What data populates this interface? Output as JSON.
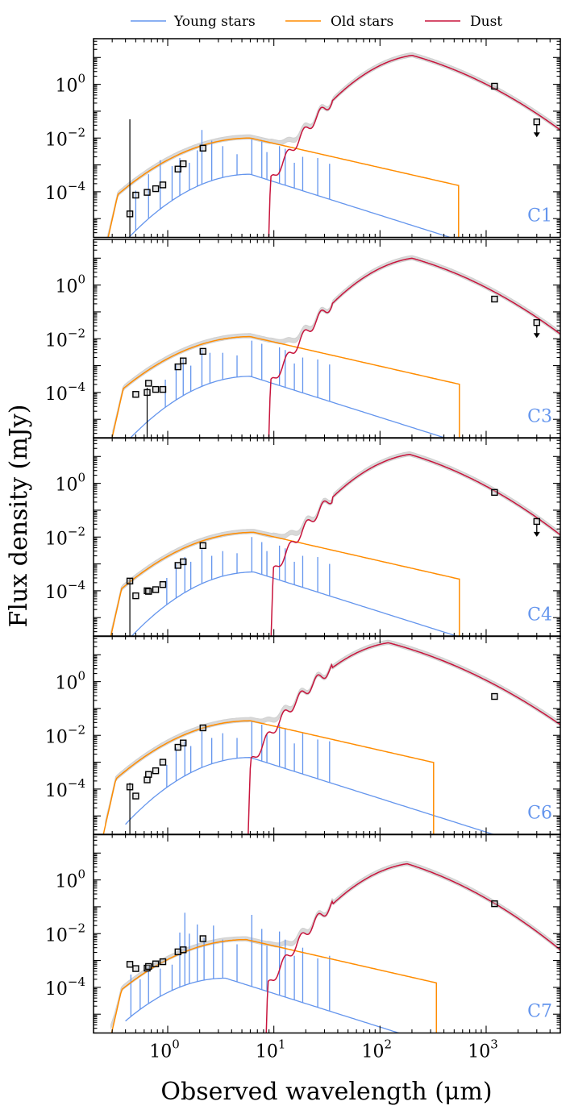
{
  "chart_data": {
    "type": "line",
    "xlabel": "Observed wavelength (μm)",
    "ylabel": "Flux density (mJy)",
    "xscale": "log",
    "yscale": "log",
    "xlim": [
      0.2,
      5000
    ],
    "ylim": [
      2e-06,
      50
    ],
    "x_ticks": [
      {
        "base": "10",
        "exp": "0"
      },
      {
        "base": "10",
        "exp": "1"
      },
      {
        "base": "10",
        "exp": "2"
      },
      {
        "base": "10",
        "exp": "3"
      }
    ],
    "y_ticks": [
      {
        "base": "10",
        "exp": "0"
      },
      {
        "base": "10",
        "exp": "−2"
      },
      {
        "base": "10",
        "exp": "−4"
      }
    ],
    "legend": {
      "placement": "top",
      "entries": [
        {
          "label": "Young stars",
          "color": "#6495ED"
        },
        {
          "label": "Old stars",
          "color": "#FF8C00"
        },
        {
          "label": "Dust",
          "color": "#C8143C"
        }
      ]
    },
    "panels": [
      {
        "name": "C1",
        "young": {
          "peak_x": 6,
          "peak_y": 0.00045,
          "lines": [
            [
              0.5,
              0.00011
            ],
            [
              0.66,
              0.00045
            ],
            [
              0.85,
              0.0015
            ],
            [
              1.1,
              0.0009
            ],
            [
              1.3,
              0.0018
            ],
            [
              1.6,
              0.0012
            ],
            [
              1.9,
              0.0035
            ],
            [
              2.1,
              0.02
            ],
            [
              2.6,
              0.008
            ],
            [
              3.3,
              0.005
            ],
            [
              4.5,
              0.0025
            ],
            [
              6.2,
              0.009
            ],
            [
              7.7,
              0.0075
            ],
            [
              8.6,
              0.003
            ],
            [
              11.3,
              0.005
            ],
            [
              12.8,
              0.004
            ],
            [
              15.6,
              0.0012
            ],
            [
              18.7,
              0.002
            ],
            [
              25.9,
              0.0018
            ],
            [
              33.5,
              0.0011
            ]
          ]
        },
        "old": {
          "start_x": 0.24,
          "peak_x": 6,
          "peak_y": 0.01,
          "end_x": 550
        },
        "dust": {
          "start_x": 8.5,
          "peak_x": 200,
          "peak_y": 12,
          "end_y": 0.02
        },
        "photometry": [
          [
            0.44,
            1.5e-05,
            0.05
          ],
          [
            0.5,
            7.5e-05,
            0
          ],
          [
            0.64,
            9.5e-05,
            0
          ],
          [
            0.77,
            0.00013,
            0
          ],
          [
            0.9,
            0.00018,
            0
          ],
          [
            1.25,
            0.0007,
            0
          ],
          [
            1.4,
            0.0011,
            0
          ],
          [
            2.15,
            0.0042,
            0
          ],
          [
            1200,
            0.85,
            0
          ],
          [
            3000,
            0.04,
            0
          ]
        ],
        "upper_limits_x": [
          3000
        ]
      },
      {
        "name": "C3",
        "young": {
          "peak_x": 6,
          "peak_y": 0.0004,
          "lines": [
            [
              0.95,
              0.0003
            ],
            [
              1.2,
              0.0011
            ],
            [
              1.4,
              0.0019
            ],
            [
              1.65,
              0.001
            ],
            [
              2.1,
              0.004
            ],
            [
              2.5,
              0.003
            ],
            [
              3.3,
              0.003
            ],
            [
              4.5,
              0.0024
            ],
            [
              6.2,
              0.0085
            ],
            [
              7.7,
              0.0065
            ],
            [
              11.3,
              0.0048
            ],
            [
              12.8,
              0.0038
            ],
            [
              15.6,
              0.0012
            ],
            [
              18.7,
              0.002
            ],
            [
              25.9,
              0.0017
            ],
            [
              33.5,
              0.0011
            ]
          ]
        },
        "old": {
          "start_x": 0.27,
          "peak_x": 6,
          "peak_y": 0.012,
          "end_x": 560
        },
        "dust": {
          "start_x": 8.5,
          "peak_x": 200,
          "peak_y": 10,
          "end_y": 0.015
        },
        "photometry": [
          [
            0.5,
            8.5e-05,
            0
          ],
          [
            0.64,
            0.0001,
            5e-05
          ],
          [
            0.66,
            0.00022,
            0
          ],
          [
            0.77,
            0.00013,
            0
          ],
          [
            0.9,
            0.00013,
            0
          ],
          [
            1.25,
            0.0009,
            0
          ],
          [
            1.4,
            0.0015,
            0
          ],
          [
            2.15,
            0.0034,
            0
          ],
          [
            1200,
            0.3,
            0
          ],
          [
            3000,
            0.04,
            0
          ]
        ],
        "upper_limits_x": [
          3000
        ]
      },
      {
        "name": "C4",
        "young": {
          "peak_x": 6.5,
          "peak_y": 0.0005,
          "lines": [
            [
              0.98,
              0.0003
            ],
            [
              1.2,
              0.001
            ],
            [
              1.45,
              0.0018
            ],
            [
              1.65,
              0.0012
            ],
            [
              2.1,
              0.0035
            ],
            [
              2.6,
              0.002
            ],
            [
              3.3,
              0.003
            ],
            [
              4.5,
              0.0025
            ],
            [
              6.2,
              0.01
            ],
            [
              7.7,
              0.0065
            ],
            [
              8.6,
              0.003
            ],
            [
              11.3,
              0.0048
            ],
            [
              12.8,
              0.0038
            ],
            [
              15.6,
              0.0012
            ],
            [
              18.7,
              0.002
            ],
            [
              25.9,
              0.0018
            ],
            [
              33.5,
              0.001
            ]
          ]
        },
        "old": {
          "start_x": 0.26,
          "peak_x": 6.5,
          "peak_y": 0.015,
          "end_x": 560
        },
        "dust": {
          "start_x": 9,
          "peak_x": 190,
          "peak_y": 12,
          "end_y": 0.012
        },
        "photometry": [
          [
            0.44,
            0.00023,
            5e-05
          ],
          [
            0.5,
            6.5e-05,
            0
          ],
          [
            0.64,
            0.0001,
            0
          ],
          [
            0.66,
            9.5e-05,
            0
          ],
          [
            0.77,
            0.00011,
            0
          ],
          [
            0.9,
            0.00017,
            0
          ],
          [
            1.25,
            0.00088,
            0
          ],
          [
            1.4,
            0.0012,
            0
          ],
          [
            2.15,
            0.0048,
            0
          ],
          [
            1200,
            0.46,
            0
          ],
          [
            3000,
            0.038,
            0
          ]
        ],
        "upper_limits_x": [
          3000
        ]
      },
      {
        "name": "C6",
        "young": {
          "peak_x": 6,
          "peak_y": 0.0015,
          "lines": [
            [
              0.98,
              0.0008
            ],
            [
              1.2,
              0.0035
            ],
            [
              1.45,
              0.006
            ],
            [
              1.65,
              0.004
            ],
            [
              2.1,
              0.014
            ],
            [
              2.6,
              0.008
            ],
            [
              3.3,
              0.012
            ],
            [
              4.5,
              0.008
            ],
            [
              6.2,
              0.035
            ],
            [
              7.7,
              0.025
            ],
            [
              8.6,
              0.011
            ],
            [
              11.3,
              0.025
            ],
            [
              12.8,
              0.018
            ],
            [
              15.6,
              0.005
            ],
            [
              18.7,
              0.012
            ],
            [
              25.9,
              0.007
            ],
            [
              33.5,
              0.006
            ]
          ]
        },
        "old": {
          "start_x": 0.23,
          "peak_x": 6,
          "peak_y": 0.035,
          "end_x": 320
        },
        "dust": {
          "start_x": 5.5,
          "peak_x": 120,
          "peak_y": 28,
          "end_y": 0.025
        },
        "photometry": [
          [
            0.44,
            0.00012,
            5e-05
          ],
          [
            0.5,
            5.5e-05,
            0
          ],
          [
            0.64,
            0.00022,
            0
          ],
          [
            0.66,
            0.00035,
            0
          ],
          [
            0.77,
            0.00048,
            0
          ],
          [
            0.9,
            0.001,
            0
          ],
          [
            1.25,
            0.0036,
            0
          ],
          [
            1.4,
            0.0052,
            0
          ],
          [
            2.15,
            0.019,
            0
          ],
          [
            1200,
            0.28,
            0
          ]
        ],
        "upper_limits_x": []
      },
      {
        "name": "C7",
        "young": {
          "peak_x": 3.5,
          "peak_y": 0.00022,
          "lines": [
            [
              0.45,
              0.0003
            ],
            [
              0.55,
              0.0002
            ],
            [
              0.66,
              0.0006
            ],
            [
              0.85,
              0.0005
            ],
            [
              1.1,
              0.0007
            ],
            [
              1.3,
              0.011
            ],
            [
              1.45,
              0.06
            ],
            [
              1.6,
              0.01
            ],
            [
              1.9,
              0.022
            ],
            [
              2.2,
              0.007
            ],
            [
              2.7,
              0.02
            ],
            [
              3.3,
              0.006
            ],
            [
              4.5,
              0.004
            ],
            [
              6.2,
              0.05
            ],
            [
              7.7,
              0.015
            ],
            [
              8.6,
              0.0035
            ],
            [
              11.3,
              0.012
            ],
            [
              12.8,
              0.006
            ],
            [
              15.6,
              0.0015
            ],
            [
              18.7,
              0.003
            ],
            [
              25.9,
              0.0012
            ],
            [
              33.5,
              0.0015
            ]
          ]
        },
        "old": {
          "start_x": 0.26,
          "peak_x": 5.5,
          "peak_y": 0.006,
          "end_x": 340
        },
        "dust": {
          "start_x": 8,
          "peak_x": 180,
          "peak_y": 4,
          "end_y": 0.0025
        },
        "photometry": [
          [
            0.44,
            0.00072,
            0
          ],
          [
            0.5,
            0.0005,
            0
          ],
          [
            0.64,
            0.00052,
            0
          ],
          [
            0.66,
            0.0006,
            0
          ],
          [
            0.77,
            0.00075,
            0
          ],
          [
            0.9,
            0.0009,
            0
          ],
          [
            1.25,
            0.0021,
            0
          ],
          [
            1.4,
            0.0025,
            0
          ],
          [
            2.15,
            0.0065,
            0
          ],
          [
            1200,
            0.13,
            0
          ]
        ],
        "upper_limits_x": []
      }
    ]
  }
}
